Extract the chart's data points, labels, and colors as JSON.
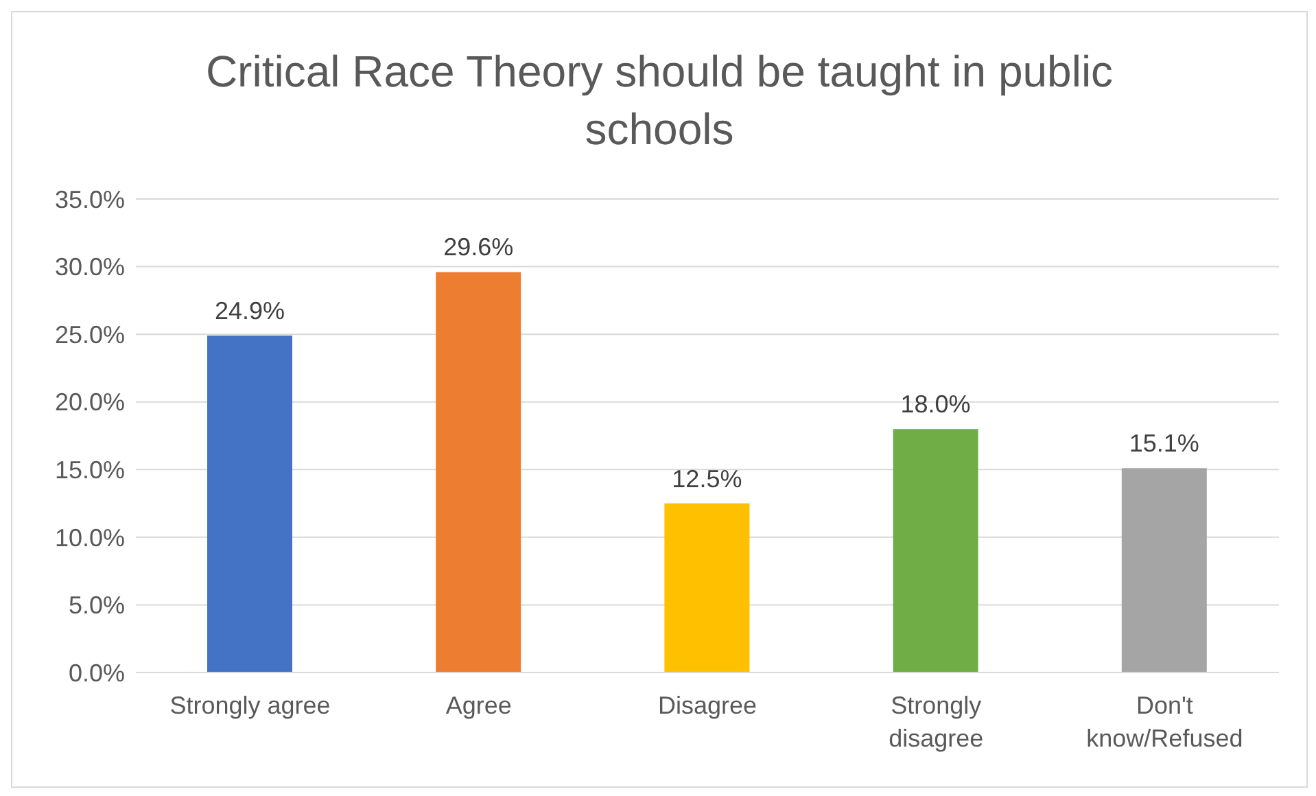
{
  "chart_data": {
    "type": "bar",
    "title": "Critical Race Theory should be taught in public schools",
    "categories": [
      "Strongly agree",
      "Agree",
      "Disagree",
      "Strongly disagree",
      "Don't know/Refused"
    ],
    "values": [
      24.9,
      29.6,
      12.5,
      18.0,
      15.1
    ],
    "value_labels": [
      "24.9%",
      "29.6%",
      "12.5%",
      "18.0%",
      "15.1%"
    ],
    "colors": [
      "#4472c4",
      "#ed7d31",
      "#ffc000",
      "#70ad47",
      "#a5a5a5"
    ],
    "ylim": [
      0,
      35
    ],
    "yticks": [
      {
        "value": 0,
        "label": "0.0%"
      },
      {
        "value": 5,
        "label": "5.0%"
      },
      {
        "value": 10,
        "label": "10.0%"
      },
      {
        "value": 15,
        "label": "15.0%"
      },
      {
        "value": 20,
        "label": "20.0%"
      },
      {
        "value": 25,
        "label": "25.0%"
      },
      {
        "value": 30,
        "label": "30.0%"
      },
      {
        "value": 35,
        "label": "35.0%"
      }
    ],
    "grid": "y",
    "legend": false
  }
}
